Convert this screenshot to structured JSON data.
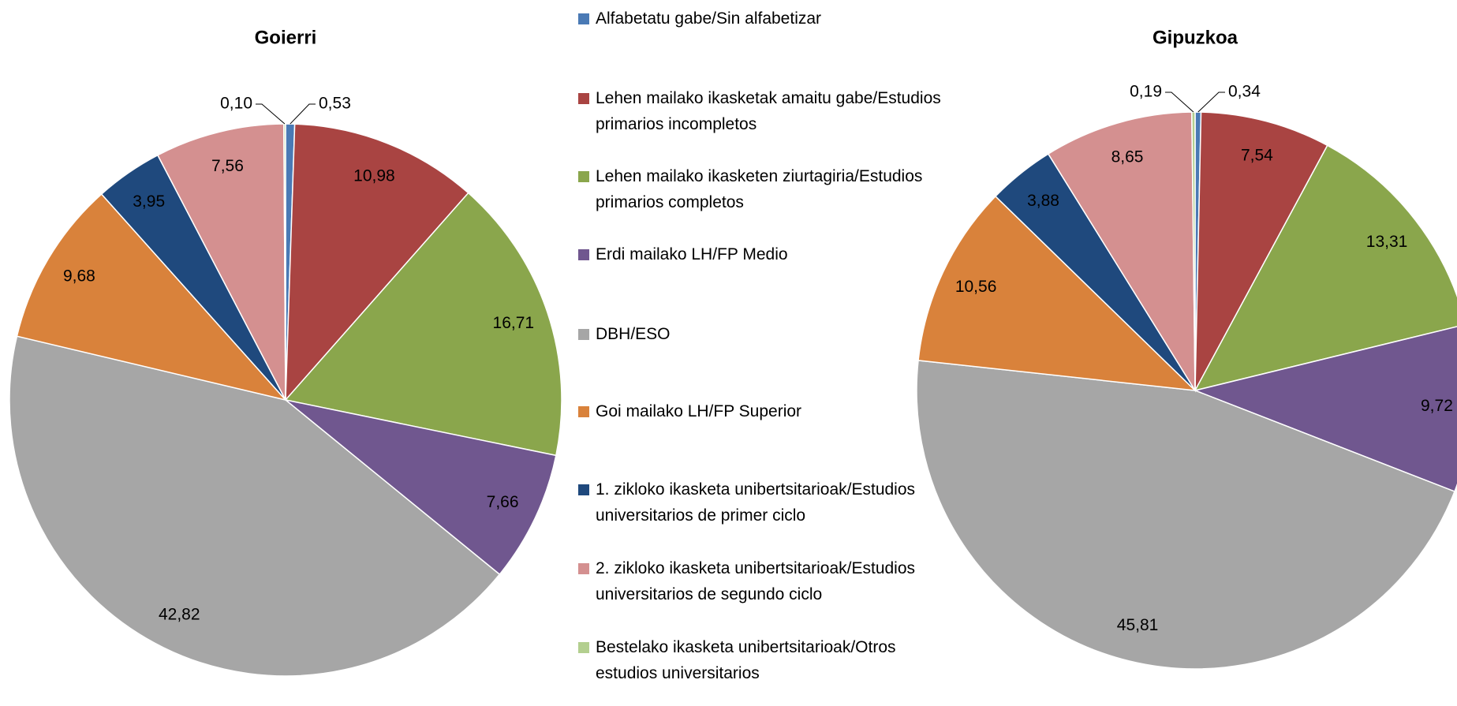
{
  "legend": {
    "categories": [
      "Alfabetatu gabe/Sin alfabetizar",
      "Lehen mailako ikasketak amaitu gabe/Estudios primarios incompletos",
      "Lehen mailako ikasketen ziurtagiria/Estudios primarios completos",
      "Erdi mailako LH/FP Medio",
      "DBH/ESO",
      "Goi mailako LH/FP Superior",
      "1. zikloko ikasketa unibertsitarioak/Estudios universitarios de primer ciclo",
      "2. zikloko ikasketa unibertsitarioak/Estudios universitarios de segundo ciclo",
      "Bestelako ikasketa unibertsitarioak/Otros estudios universitarios"
    ],
    "colors": [
      "#4a7ab5",
      "#a94442",
      "#8aa64c",
      "#70578f",
      "#a6a6a6",
      "#d9823b",
      "#1f497d",
      "#d49090",
      "#b3cf8f"
    ]
  },
  "chart_data": [
    {
      "type": "pie",
      "title": "Goierri",
      "values": [
        0.53,
        10.98,
        16.71,
        7.66,
        42.82,
        9.68,
        3.95,
        7.56,
        0.1
      ],
      "value_labels": [
        "0,53",
        "10,98",
        "16,71",
        "7,66",
        "42,82",
        "9,68",
        "3,95",
        "7,56",
        "0,10"
      ]
    },
    {
      "type": "pie",
      "title": "Gipuzkoa",
      "values": [
        0.34,
        7.54,
        13.31,
        9.72,
        45.81,
        10.56,
        3.88,
        8.65,
        0.19
      ],
      "value_labels": [
        "0,34",
        "7,54",
        "13,31",
        "9,72",
        "45,81",
        "10,56",
        "3,88",
        "8,65",
        "0,19"
      ]
    }
  ]
}
